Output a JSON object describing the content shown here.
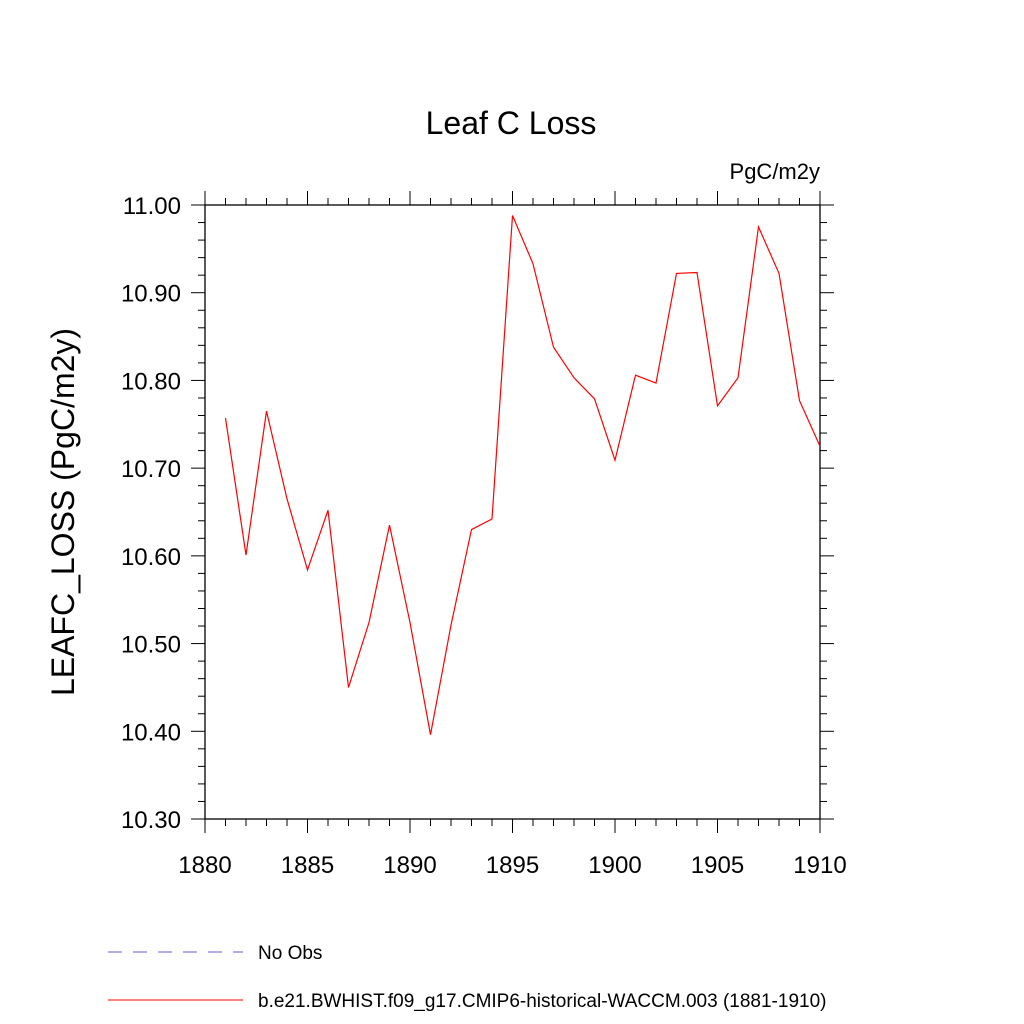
{
  "chart_data": {
    "type": "line",
    "title": "Leaf C Loss",
    "units_label": "PgC/m2y",
    "ylabel": "LEAFC_LOSS  (PgC/m2y)",
    "xlabel": "",
    "xlim": [
      1880,
      1910
    ],
    "ylim": [
      10.3,
      11.0
    ],
    "x_ticks": [
      1880,
      1885,
      1890,
      1895,
      1900,
      1905,
      1910
    ],
    "y_ticks": [
      "10.30",
      "10.40",
      "10.50",
      "10.60",
      "10.70",
      "10.80",
      "10.90",
      "11.00"
    ],
    "series": [
      {
        "name": "b.e21.BWHIST.f09_g17.CMIP6-historical-WACCM.003 (1881-1910)",
        "color": "#ff0000",
        "style": "solid",
        "x": [
          1881,
          1882,
          1883,
          1884,
          1885,
          1886,
          1887,
          1888,
          1889,
          1890,
          1891,
          1892,
          1893,
          1894,
          1895,
          1896,
          1897,
          1898,
          1899,
          1900,
          1901,
          1902,
          1903,
          1904,
          1905,
          1906,
          1907,
          1908,
          1909,
          1910
        ],
        "values": [
          10.757,
          10.601,
          10.765,
          10.665,
          10.584,
          10.652,
          10.45,
          10.524,
          10.635,
          10.524,
          10.396,
          10.521,
          10.63,
          10.642,
          10.988,
          10.933,
          10.838,
          10.803,
          10.779,
          10.709,
          10.806,
          10.797,
          10.922,
          10.923,
          10.771,
          10.803,
          10.975,
          10.922,
          10.777,
          10.725
        ]
      },
      {
        "name": "No Obs",
        "color": "#6a5acd",
        "style": "dashed",
        "x": [],
        "values": []
      }
    ],
    "legend": {
      "placement": "bottom-left",
      "entries": [
        "No Obs",
        "b.e21.BWHIST.f09_g17.CMIP6-historical-WACCM.003 (1881-1910)"
      ]
    }
  }
}
